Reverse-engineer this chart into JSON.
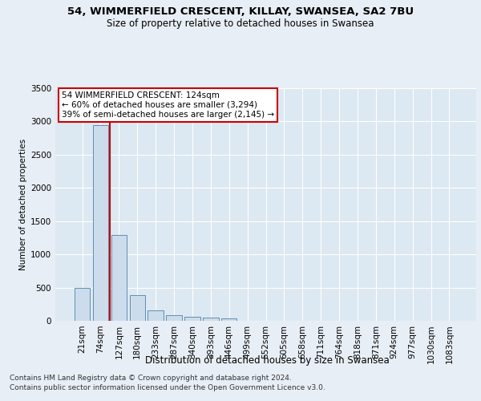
{
  "title1": "54, WIMMERFIELD CRESCENT, KILLAY, SWANSEA, SA2 7BU",
  "title2": "Size of property relative to detached houses in Swansea",
  "xlabel": "Distribution of detached houses by size in Swansea",
  "ylabel": "Number of detached properties",
  "footnote1": "Contains HM Land Registry data © Crown copyright and database right 2024.",
  "footnote2": "Contains public sector information licensed under the Open Government Licence v3.0.",
  "categories": [
    "21sqm",
    "74sqm",
    "127sqm",
    "180sqm",
    "233sqm",
    "287sqm",
    "340sqm",
    "393sqm",
    "446sqm",
    "499sqm",
    "552sqm",
    "605sqm",
    "658sqm",
    "711sqm",
    "764sqm",
    "818sqm",
    "871sqm",
    "924sqm",
    "977sqm",
    "1030sqm",
    "1083sqm"
  ],
  "values": [
    490,
    2940,
    1290,
    390,
    155,
    80,
    55,
    45,
    38,
    0,
    0,
    0,
    0,
    0,
    0,
    0,
    0,
    0,
    0,
    0,
    0
  ],
  "bar_color": "#ccdcec",
  "bar_edge_color": "#6090b0",
  "vline_pos": 1.5,
  "vline_color": "#cc0000",
  "annotation_line1": "54 WIMMERFIELD CRESCENT: 124sqm",
  "annotation_line2": "← 60% of detached houses are smaller (3,294)",
  "annotation_line3": "39% of semi-detached houses are larger (2,145) →",
  "annotation_box_edgecolor": "#cc0000",
  "annotation_box_facecolor": "#ffffff",
  "ylim": [
    0,
    3500
  ],
  "yticks": [
    0,
    500,
    1000,
    1500,
    2000,
    2500,
    3000,
    3500
  ],
  "bg_color": "#e8eef5",
  "plot_bg_color": "#dce8f2",
  "grid_color": "#ffffff",
  "title1_fontsize": 9.5,
  "title2_fontsize": 8.5,
  "xlabel_fontsize": 8.5,
  "ylabel_fontsize": 7.5,
  "tick_fontsize": 7.5,
  "annot_fontsize": 7.5,
  "footnote_fontsize": 6.5
}
